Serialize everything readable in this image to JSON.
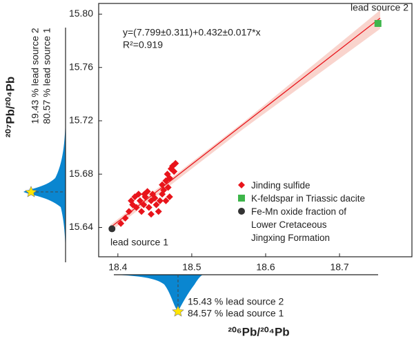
{
  "chart_data": {
    "type": "scatter",
    "x_label": "²⁰⁶Pb/²⁰⁴Pb",
    "y_label": "²⁰⁷Pb/²⁰⁴Pb",
    "xlim": [
      18.374,
      18.798
    ],
    "ylim": [
      15.618,
      15.808
    ],
    "xticks": [
      18.4,
      18.5,
      18.6,
      18.7
    ],
    "yticks": [
      {
        "value": 15.8,
        "label": "15.80"
      },
      15.76,
      15.72,
      15.68,
      15.64
    ],
    "series": [
      {
        "name": "Jinding  sulfide",
        "color": "#e8141b",
        "marker": "diamond",
        "x": [
          18.404,
          18.41,
          18.415,
          18.418,
          18.42,
          18.423,
          18.425,
          18.428,
          18.43,
          18.432,
          18.435,
          18.437,
          18.44,
          18.442,
          18.445,
          18.447,
          18.45,
          18.452,
          18.455,
          18.457,
          18.46,
          18.46,
          18.462,
          18.465,
          18.465,
          18.467,
          18.468,
          18.47,
          18.472,
          18.474,
          18.476,
          18.478,
          18.47,
          18.445,
          18.436
        ],
        "y": [
          15.643,
          15.647,
          15.652,
          15.66,
          15.657,
          15.663,
          15.655,
          15.665,
          15.66,
          15.652,
          15.657,
          15.663,
          15.667,
          15.655,
          15.66,
          15.665,
          15.662,
          15.657,
          15.652,
          15.66,
          15.665,
          15.672,
          15.668,
          15.675,
          15.66,
          15.68,
          15.67,
          15.677,
          15.684,
          15.686,
          15.682,
          15.688,
          15.663,
          15.65,
          15.665
        ]
      },
      {
        "name": "K-feldspar in Triassic dacite",
        "color": "#3db54a",
        "marker": "square",
        "x": [
          18.752
        ],
        "y": [
          15.793
        ]
      },
      {
        "name": "Fe-Mn  oxide fraction of Lower Cretaceous Jingxing Formation",
        "color": "#333333",
        "marker": "circle",
        "x": [
          18.392
        ],
        "y": [
          15.639
        ]
      }
    ],
    "fit_line": {
      "color": "#e8141b",
      "x": [
        18.39,
        18.755
      ],
      "y": [
        15.64,
        15.797
      ]
    },
    "confidence_band": {
      "color": "#f7c9c0",
      "x": [
        18.39,
        18.57,
        18.755
      ],
      "upper": [
        15.642,
        15.719,
        15.803
      ],
      "lower": [
        15.637,
        15.714,
        15.789
      ]
    },
    "equation": "y=(7.799±0.311)+0.432±0.017*x",
    "r_squared": "R²=0.919",
    "annotations": [
      "lead source 2",
      "lead source 1"
    ],
    "y_marginal_labels": [
      "19.43 % lead source 2",
      "80.57 % lead source 1"
    ],
    "x_marginal_labels": [
      "15.43 % lead source 2",
      "84.57 % lead source 1"
    ]
  }
}
